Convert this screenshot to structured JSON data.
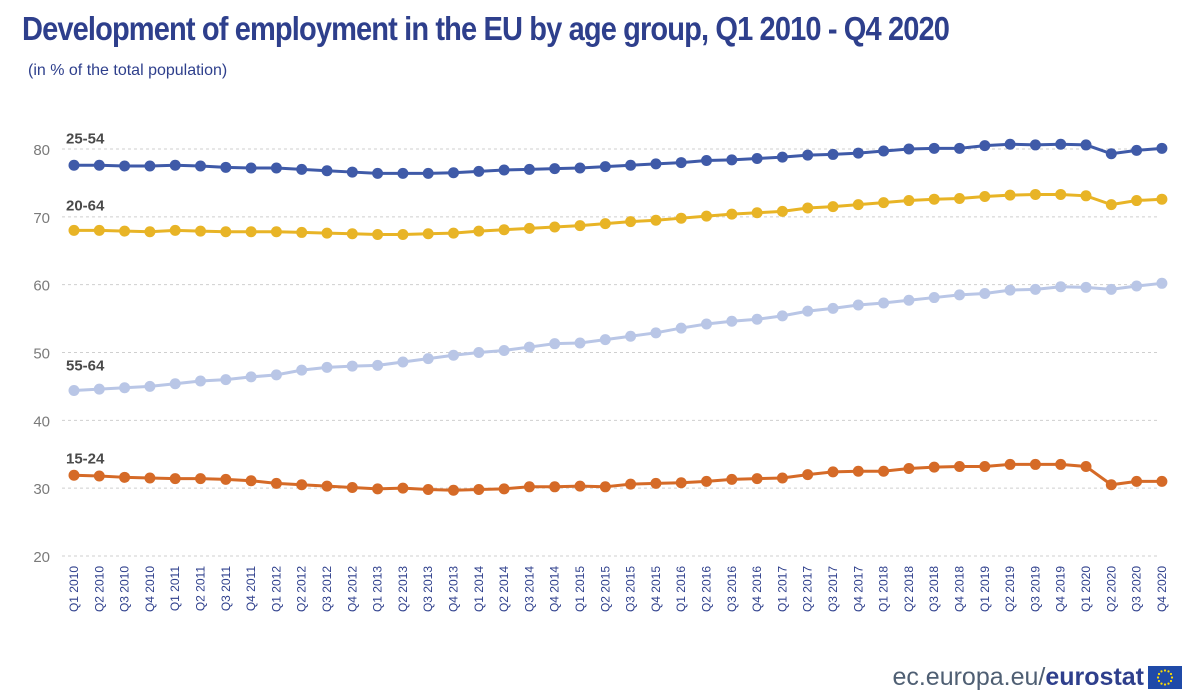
{
  "chart_data": {
    "type": "line",
    "title": "Development of employment in the EU by age group,  Q1 2010 - Q4 2020",
    "subtitle": "(in % of the total population)",
    "ylim": [
      20,
      80
    ],
    "yticks": [
      20,
      30,
      40,
      50,
      60,
      70,
      80
    ],
    "grid": true,
    "categories": [
      "Q1 2010",
      "Q2 2010",
      "Q3 2010",
      "Q4 2010",
      "Q1 2011",
      "Q2 2011",
      "Q3 2011",
      "Q4 2011",
      "Q1 2012",
      "Q2 2012",
      "Q3 2012",
      "Q4 2012",
      "Q1 2013",
      "Q2 2013",
      "Q3 2013",
      "Q4 2013",
      "Q1 2014",
      "Q2 2014",
      "Q3 2014",
      "Q4 2014",
      "Q1 2015",
      "Q2 2015",
      "Q3 2015",
      "Q4 2015",
      "Q1 2016",
      "Q2 2016",
      "Q3 2016",
      "Q4 2016",
      "Q1 2017",
      "Q2 2017",
      "Q3 2017",
      "Q4 2017",
      "Q1 2018",
      "Q2 2018",
      "Q3 2018",
      "Q4 2018",
      "Q1 2019",
      "Q2 2019",
      "Q3 2019",
      "Q4 2019",
      "Q1 2020",
      "Q2 2020",
      "Q3 2020",
      "Q4 2020"
    ],
    "series": [
      {
        "name": "25-54",
        "color": "#3f5aa8",
        "values": [
          77.6,
          77.6,
          77.5,
          77.5,
          77.6,
          77.5,
          77.3,
          77.2,
          77.2,
          77.0,
          76.8,
          76.6,
          76.4,
          76.4,
          76.4,
          76.5,
          76.7,
          76.9,
          77.0,
          77.1,
          77.2,
          77.4,
          77.6,
          77.8,
          78.0,
          78.3,
          78.4,
          78.6,
          78.8,
          79.1,
          79.2,
          79.4,
          79.7,
          80.0,
          80.1,
          80.1,
          80.5,
          80.7,
          80.6,
          80.7,
          80.6,
          79.3,
          79.8,
          80.1
        ]
      },
      {
        "name": "20-64",
        "color": "#e8b426",
        "values": [
          68.0,
          68.0,
          67.9,
          67.8,
          68.0,
          67.9,
          67.8,
          67.8,
          67.8,
          67.7,
          67.6,
          67.5,
          67.4,
          67.4,
          67.5,
          67.6,
          67.9,
          68.1,
          68.3,
          68.5,
          68.7,
          69.0,
          69.3,
          69.5,
          69.8,
          70.1,
          70.4,
          70.6,
          70.8,
          71.3,
          71.5,
          71.8,
          72.1,
          72.4,
          72.6,
          72.7,
          73.0,
          73.2,
          73.3,
          73.3,
          73.1,
          71.8,
          72.4,
          72.6
        ]
      },
      {
        "name": "55-64",
        "color": "#b9c6e6",
        "values": [
          44.4,
          44.6,
          44.8,
          45.0,
          45.4,
          45.8,
          46.0,
          46.4,
          46.7,
          47.4,
          47.8,
          48.0,
          48.1,
          48.6,
          49.1,
          49.6,
          50.0,
          50.3,
          50.8,
          51.3,
          51.4,
          51.9,
          52.4,
          52.9,
          53.6,
          54.2,
          54.6,
          54.9,
          55.4,
          56.1,
          56.5,
          57.0,
          57.3,
          57.7,
          58.1,
          58.5,
          58.7,
          59.2,
          59.3,
          59.7,
          59.6,
          59.3,
          59.8,
          60.2
        ]
      },
      {
        "name": "15-24",
        "color": "#d56a27",
        "values": [
          31.9,
          31.8,
          31.6,
          31.5,
          31.4,
          31.4,
          31.3,
          31.1,
          30.7,
          30.5,
          30.3,
          30.1,
          29.9,
          30.0,
          29.8,
          29.7,
          29.8,
          29.9,
          30.2,
          30.2,
          30.3,
          30.2,
          30.6,
          30.7,
          30.8,
          31.0,
          31.3,
          31.4,
          31.5,
          32.0,
          32.4,
          32.5,
          32.5,
          32.9,
          33.1,
          33.2,
          33.2,
          33.5,
          33.5,
          33.5,
          33.2,
          30.5,
          31.0,
          31.0
        ]
      }
    ]
  },
  "footer": {
    "domain": "ec.europa.eu/",
    "brand": "eurostat"
  }
}
